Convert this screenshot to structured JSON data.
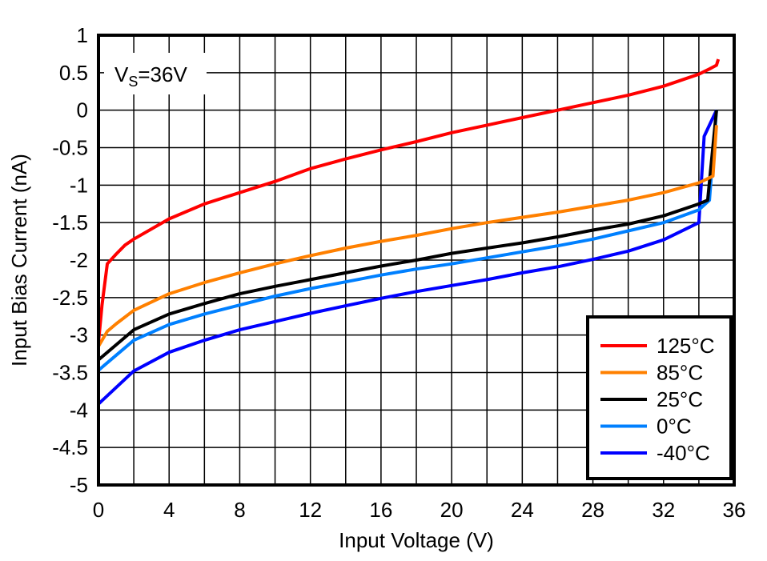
{
  "chart_data": {
    "type": "line",
    "title": "",
    "xlabel": "Input Voltage (V)",
    "ylabel": "Input Bias Current (nA)",
    "xlim": [
      0,
      36
    ],
    "ylim": [
      -5,
      1
    ],
    "xticks": [
      0,
      4,
      8,
      12,
      16,
      20,
      24,
      28,
      32,
      36
    ],
    "yticks": [
      1,
      0.5,
      0,
      -0.5,
      -1,
      -1.5,
      -2,
      -2.5,
      -3,
      -3.5,
      -4,
      -4.5,
      -5
    ],
    "grid": true,
    "annotation": {
      "main": "V",
      "sub": "S",
      "rest": "=36V"
    },
    "legend_position": "bottom-right",
    "series": [
      {
        "name": "125°C",
        "color": "#ff0000",
        "x": [
          0,
          0.2,
          0.5,
          1,
          1.5,
          2,
          4,
          6,
          8,
          10,
          12,
          14,
          16,
          18,
          20,
          22,
          24,
          26,
          28,
          30,
          32,
          34,
          34.6,
          35,
          35.1
        ],
        "y": [
          -3.1,
          -2.6,
          -2.05,
          -1.92,
          -1.8,
          -1.72,
          -1.45,
          -1.25,
          -1.1,
          -0.95,
          -0.78,
          -0.65,
          -0.53,
          -0.42,
          -0.3,
          -0.2,
          -0.1,
          0,
          0.1,
          0.2,
          0.32,
          0.48,
          0.55,
          0.6,
          0.68
        ]
      },
      {
        "name": "85°C",
        "color": "#ff8000",
        "x": [
          0,
          0.5,
          1,
          2,
          4,
          6,
          8,
          10,
          12,
          14,
          16,
          18,
          20,
          22,
          24,
          26,
          28,
          30,
          32,
          34,
          34.8,
          35
        ],
        "y": [
          -3.15,
          -2.95,
          -2.85,
          -2.67,
          -2.45,
          -2.3,
          -2.17,
          -2.05,
          -1.94,
          -1.84,
          -1.75,
          -1.67,
          -1.58,
          -1.5,
          -1.43,
          -1.36,
          -1.28,
          -1.2,
          -1.1,
          -0.97,
          -0.88,
          -0.2
        ]
      },
      {
        "name": "25°C",
        "color": "#000000",
        "x": [
          0,
          2,
          4,
          6,
          8,
          10,
          12,
          14,
          16,
          18,
          20,
          22,
          24,
          26,
          28,
          30,
          32,
          34,
          34.5,
          35
        ],
        "y": [
          -3.33,
          -2.93,
          -2.72,
          -2.58,
          -2.45,
          -2.35,
          -2.26,
          -2.17,
          -2.08,
          -2.0,
          -1.91,
          -1.84,
          -1.77,
          -1.69,
          -1.6,
          -1.52,
          -1.41,
          -1.25,
          -1.2,
          0
        ]
      },
      {
        "name": "0°C",
        "color": "#0080ff",
        "x": [
          0,
          2,
          4,
          6,
          8,
          10,
          12,
          14,
          16,
          18,
          20,
          22,
          24,
          26,
          28,
          30,
          32,
          34,
          34.6,
          35
        ],
        "y": [
          -3.47,
          -3.07,
          -2.86,
          -2.72,
          -2.6,
          -2.48,
          -2.38,
          -2.29,
          -2.2,
          -2.12,
          -2.05,
          -1.97,
          -1.89,
          -1.81,
          -1.72,
          -1.61,
          -1.5,
          -1.33,
          -1.2,
          0
        ]
      },
      {
        "name": "-40°C",
        "color": "#0000ff",
        "x": [
          0,
          2,
          4,
          6,
          8,
          10,
          12,
          14,
          16,
          18,
          20,
          22,
          24,
          26,
          28,
          30,
          32,
          34,
          34.3,
          35
        ],
        "y": [
          -3.92,
          -3.48,
          -3.23,
          -3.07,
          -2.93,
          -2.82,
          -2.71,
          -2.61,
          -2.51,
          -2.42,
          -2.34,
          -2.26,
          -2.17,
          -2.09,
          -1.99,
          -1.88,
          -1.73,
          -1.5,
          -0.35,
          0
        ]
      }
    ]
  }
}
